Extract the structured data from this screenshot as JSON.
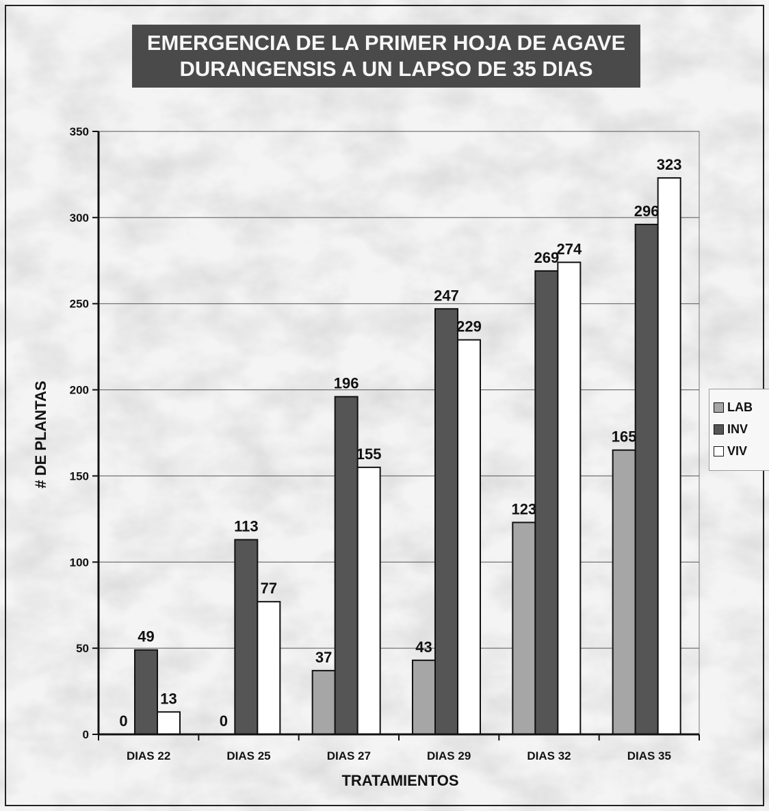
{
  "chart_data": {
    "type": "bar",
    "title_line1": "EMERGENCIA DE LA PRIMER HOJA DE AGAVE",
    "title_line2": "DURANGENSIS A UN LAPSO DE 35 DIAS",
    "xlabel": "TRATAMIENTOS",
    "ylabel": "# DE PLANTAS",
    "ylim": [
      0,
      350
    ],
    "yticks": [
      "0",
      "50",
      "100",
      "150",
      "200",
      "250",
      "300",
      "350"
    ],
    "categories": [
      "DIAS 22",
      "DIAS 25",
      "DIAS 27",
      "DIAS 29",
      "DIAS 32",
      "DIAS 35"
    ],
    "series": [
      {
        "name": "LAB",
        "values": [
          0,
          0,
          37,
          43,
          123,
          165
        ],
        "color": "#a6a6a6"
      },
      {
        "name": "INV",
        "values": [
          49,
          113,
          196,
          247,
          269,
          296
        ],
        "color": "#555555"
      },
      {
        "name": "VIV",
        "values": [
          13,
          77,
          155,
          229,
          274,
          323
        ],
        "color": "#ffffff"
      }
    ],
    "grid": true,
    "legend_position": "right"
  }
}
